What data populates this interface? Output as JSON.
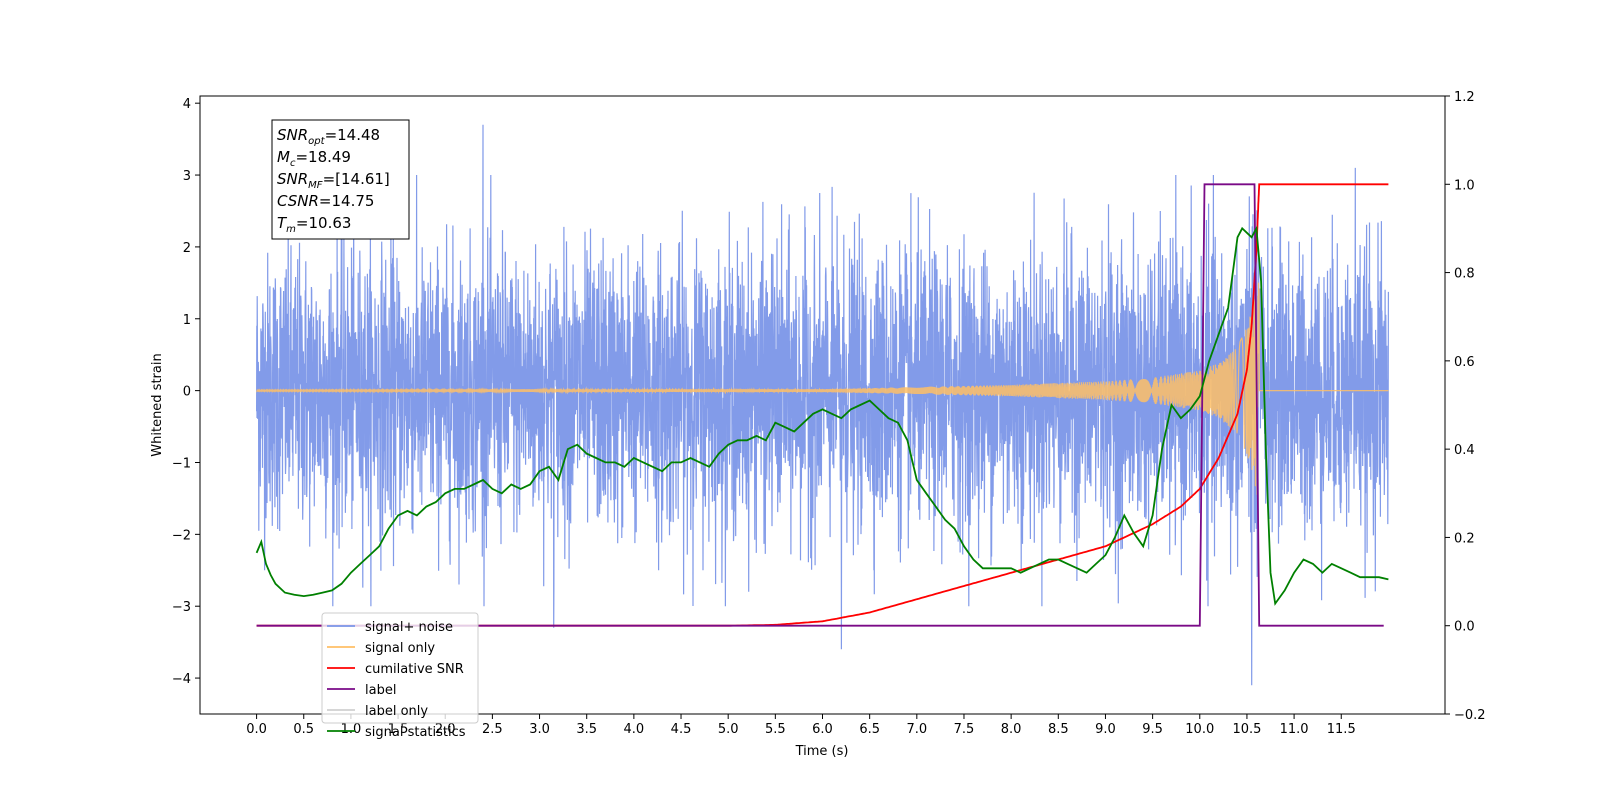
{
  "chart_data": {
    "type": "line",
    "xlabel": "Time (s)",
    "ylabel": "Whitened strain",
    "ylabel_right": "",
    "xlim": [
      -0.6,
      12.6
    ],
    "ylim": [
      -4.5,
      4.1
    ],
    "ylim_right": [
      -0.2,
      1.2
    ],
    "x_ticks": [
      0.0,
      0.5,
      1.0,
      1.5,
      2.0,
      2.5,
      3.0,
      3.5,
      4.0,
      4.5,
      5.0,
      5.5,
      6.0,
      6.5,
      7.0,
      7.5,
      8.0,
      8.5,
      9.0,
      9.5,
      10.0,
      10.5,
      11.0,
      11.5
    ],
    "x_tick_labels": [
      "0.0",
      "0.5",
      "1.0",
      "1.5",
      "2.0",
      "2.5",
      "3.0",
      "3.5",
      "4.0",
      "4.5",
      "5.0",
      "5.5",
      "6.0",
      "6.5",
      "7.0",
      "7.5",
      "8.0",
      "8.5",
      "9.0",
      "9.5",
      "10.0",
      "10.5",
      "11.0",
      "11.5"
    ],
    "y_ticks": [
      -4,
      -3,
      -2,
      -1,
      0,
      1,
      2,
      3,
      4
    ],
    "y_tick_labels": [
      "−4",
      "−3",
      "−2",
      "−1",
      "0",
      "1",
      "2",
      "3",
      "4"
    ],
    "y_ticks_right": [
      -0.2,
      0.0,
      0.2,
      0.4,
      0.6,
      0.8,
      1.0,
      1.2
    ],
    "y_tick_labels_right": [
      "−0.2",
      "0.0",
      "0.2",
      "0.4",
      "0.6",
      "0.8",
      "1.0",
      "1.2"
    ],
    "grid": false,
    "legend_position": "lower-left",
    "info_box": {
      "position": "top-left",
      "lines": [
        {
          "base": "SNR",
          "sub": "opt",
          "value": "=14.48"
        },
        {
          "base": "M",
          "sub": "c",
          "value": "=18.49"
        },
        {
          "base": "SNR",
          "sub": "MF",
          "value": "=[14.61]"
        },
        {
          "base": "CSNR",
          "sub": "",
          "value": "=14.75"
        },
        {
          "base": "T",
          "sub": "m",
          "value": "=10.63"
        }
      ]
    },
    "series": [
      {
        "name": "signal+ noise",
        "color": "#7b96e8",
        "axis": "left",
        "kind": "noise",
        "x_range": [
          0.0,
          12.0
        ],
        "y_typical_range": [
          -1.5,
          1.5
        ],
        "x_peaks": [
          2.4,
          3.15,
          6.2,
          10.55,
          11.65
        ],
        "y_peaks": [
          3.7,
          -3.3,
          -3.6,
          -4.1,
          3.1
        ]
      },
      {
        "name": "signal only",
        "color": "#ffbf66",
        "axis": "left",
        "kind": "chirp",
        "t_merger": 10.63,
        "x": [
          0.0,
          6.0,
          7.0,
          8.0,
          9.0,
          9.5,
          10.0,
          10.2,
          10.4,
          10.5,
          10.55,
          10.6,
          10.63
        ],
        "amplitude": [
          0.01,
          0.02,
          0.05,
          0.08,
          0.13,
          0.18,
          0.28,
          0.38,
          0.6,
          0.9,
          1.1,
          1.4,
          1.6
        ]
      },
      {
        "name": "cumilative SNR",
        "color": "#ff0000",
        "axis": "right",
        "x": [
          0.0,
          5.0,
          5.5,
          6.0,
          6.5,
          7.0,
          7.5,
          8.0,
          8.5,
          9.0,
          9.5,
          9.8,
          10.0,
          10.2,
          10.4,
          10.5,
          10.55,
          10.6,
          10.63,
          12.0
        ],
        "values": [
          0.0,
          0.0,
          0.002,
          0.01,
          0.03,
          0.06,
          0.09,
          0.12,
          0.15,
          0.18,
          0.23,
          0.27,
          0.31,
          0.38,
          0.48,
          0.58,
          0.68,
          0.85,
          1.0,
          1.0
        ]
      },
      {
        "name": "label",
        "color": "#7a0a87",
        "axis": "right",
        "x": [
          0.0,
          10.0,
          10.05,
          10.58,
          10.63,
          11.95
        ],
        "values": [
          0.0,
          0.0,
          1.0,
          1.0,
          0.0,
          0.0
        ]
      },
      {
        "name": "label only",
        "color": "#d0d0d0",
        "axis": "right",
        "x": [],
        "values": []
      },
      {
        "name": "signal statistics",
        "color": "#008000",
        "axis": "right",
        "x": [
          0.0,
          0.05,
          0.1,
          0.15,
          0.2,
          0.3,
          0.4,
          0.5,
          0.6,
          0.7,
          0.8,
          0.9,
          1.0,
          1.1,
          1.2,
          1.3,
          1.4,
          1.5,
          1.6,
          1.7,
          1.8,
          1.9,
          2.0,
          2.1,
          2.2,
          2.3,
          2.4,
          2.5,
          2.6,
          2.7,
          2.8,
          2.9,
          3.0,
          3.1,
          3.2,
          3.3,
          3.4,
          3.5,
          3.6,
          3.7,
          3.8,
          3.9,
          4.0,
          4.1,
          4.2,
          4.3,
          4.4,
          4.5,
          4.6,
          4.7,
          4.8,
          4.9,
          5.0,
          5.1,
          5.2,
          5.3,
          5.4,
          5.5,
          5.6,
          5.7,
          5.8,
          5.9,
          6.0,
          6.1,
          6.2,
          6.3,
          6.4,
          6.5,
          6.6,
          6.7,
          6.8,
          6.9,
          7.0,
          7.1,
          7.2,
          7.3,
          7.4,
          7.5,
          7.6,
          7.7,
          7.8,
          7.9,
          8.0,
          8.1,
          8.2,
          8.3,
          8.4,
          8.5,
          8.6,
          8.7,
          8.8,
          8.9,
          9.0,
          9.1,
          9.2,
          9.3,
          9.4,
          9.5,
          9.6,
          9.7,
          9.8,
          9.9,
          10.0,
          10.1,
          10.2,
          10.3,
          10.35,
          10.4,
          10.45,
          10.5,
          10.55,
          10.6,
          10.65,
          10.7,
          10.75,
          10.8,
          10.9,
          11.0,
          11.1,
          11.2,
          11.3,
          11.4,
          11.5,
          11.6,
          11.7,
          11.8,
          11.9,
          12.0
        ],
        "values": [
          0.165,
          0.19,
          0.14,
          0.115,
          0.095,
          0.075,
          0.07,
          0.067,
          0.07,
          0.075,
          0.08,
          0.095,
          0.12,
          0.14,
          0.16,
          0.18,
          0.22,
          0.25,
          0.26,
          0.25,
          0.27,
          0.28,
          0.3,
          0.31,
          0.31,
          0.32,
          0.33,
          0.31,
          0.3,
          0.32,
          0.31,
          0.32,
          0.35,
          0.36,
          0.33,
          0.4,
          0.41,
          0.39,
          0.38,
          0.37,
          0.37,
          0.36,
          0.38,
          0.37,
          0.36,
          0.35,
          0.37,
          0.37,
          0.38,
          0.37,
          0.36,
          0.39,
          0.41,
          0.42,
          0.42,
          0.43,
          0.42,
          0.46,
          0.45,
          0.44,
          0.46,
          0.48,
          0.49,
          0.48,
          0.47,
          0.49,
          0.5,
          0.51,
          0.49,
          0.47,
          0.46,
          0.42,
          0.33,
          0.3,
          0.27,
          0.24,
          0.22,
          0.18,
          0.15,
          0.13,
          0.13,
          0.13,
          0.13,
          0.12,
          0.13,
          0.14,
          0.15,
          0.15,
          0.14,
          0.13,
          0.12,
          0.14,
          0.16,
          0.2,
          0.25,
          0.21,
          0.18,
          0.25,
          0.4,
          0.5,
          0.47,
          0.49,
          0.52,
          0.6,
          0.66,
          0.72,
          0.8,
          0.88,
          0.9,
          0.89,
          0.88,
          0.9,
          0.78,
          0.4,
          0.12,
          0.05,
          0.08,
          0.12,
          0.15,
          0.14,
          0.12,
          0.14,
          0.13,
          0.12,
          0.11,
          0.11,
          0.11,
          0.105
        ]
      }
    ]
  }
}
